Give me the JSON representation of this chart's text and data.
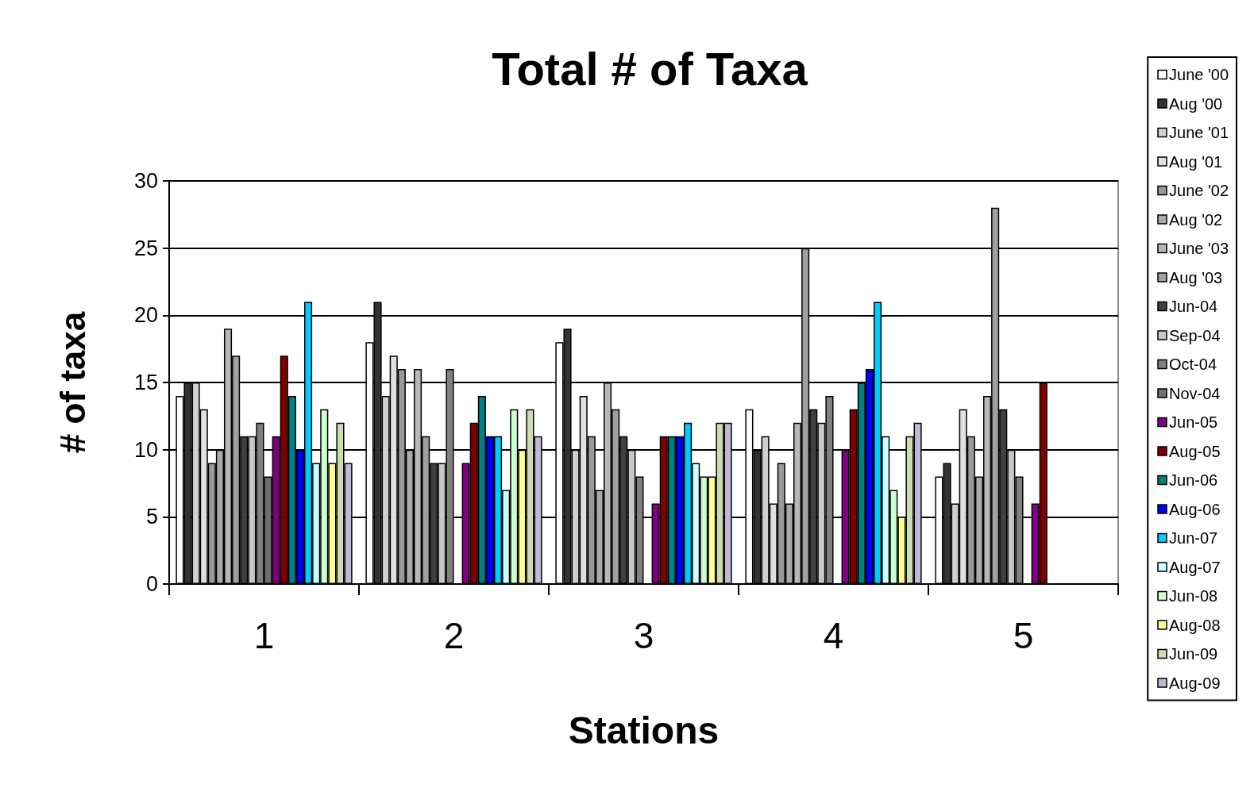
{
  "chart_data": {
    "type": "bar",
    "title": "Total # of Taxa",
    "xlabel": "Stations",
    "ylabel": "# of taxa",
    "categories": [
      "1",
      "2",
      "3",
      "4",
      "5"
    ],
    "ylim": [
      0,
      30
    ],
    "yticks": [
      0,
      5,
      10,
      15,
      20,
      25,
      30
    ],
    "grid": "y",
    "legend": "right",
    "series": [
      {
        "name": "June '00",
        "color": "#ffffff",
        "values": [
          14,
          18,
          18,
          13,
          8
        ]
      },
      {
        "name": "Aug '00",
        "color": "#333333",
        "values": [
          15,
          21,
          19,
          10,
          9
        ]
      },
      {
        "name": "June '01",
        "color": "#d0d0d0",
        "values": [
          15,
          14,
          10,
          11,
          6
        ]
      },
      {
        "name": "Aug '01",
        "color": "#e0e0e0",
        "values": [
          13,
          17,
          14,
          6,
          13
        ]
      },
      {
        "name": "June '02",
        "color": "#999999",
        "values": [
          9,
          16,
          11,
          9,
          11
        ]
      },
      {
        "name": "Aug '02",
        "color": "#aaaaaa",
        "values": [
          10,
          10,
          7,
          6,
          8
        ]
      },
      {
        "name": "June '03",
        "color": "#b8b8b8",
        "values": [
          19,
          16,
          15,
          12,
          14
        ]
      },
      {
        "name": "Aug '03",
        "color": "#a0a0a0",
        "values": [
          17,
          11,
          13,
          25,
          28
        ]
      },
      {
        "name": "Jun-04",
        "color": "#404040",
        "values": [
          11,
          9,
          11,
          13,
          13
        ]
      },
      {
        "name": "Sep-04",
        "color": "#c8c8c8",
        "values": [
          11,
          9,
          10,
          12,
          10
        ]
      },
      {
        "name": "Oct-04",
        "color": "#808080",
        "values": [
          12,
          16,
          8,
          14,
          8
        ]
      },
      {
        "name": "Nov-04",
        "color": "#707070",
        "values": [
          8,
          null,
          null,
          null,
          null
        ]
      },
      {
        "name": "Jun-05",
        "color": "#800080",
        "values": [
          11,
          9,
          6,
          10,
          6
        ]
      },
      {
        "name": "Aug-05",
        "color": "#800000",
        "values": [
          17,
          12,
          11,
          13,
          15
        ]
      },
      {
        "name": "Jun-06",
        "color": "#008080",
        "values": [
          14,
          14,
          11,
          15,
          null
        ]
      },
      {
        "name": "Aug-06",
        "color": "#0000ff",
        "values": [
          10,
          11,
          11,
          16,
          null
        ]
      },
      {
        "name": "Jun-07",
        "color": "#00ccff",
        "values": [
          21,
          11,
          12,
          21,
          null
        ]
      },
      {
        "name": "Aug-07",
        "color": "#ccffff",
        "values": [
          9,
          7,
          9,
          11,
          null
        ]
      },
      {
        "name": "Jun-08",
        "color": "#ccffcc",
        "values": [
          13,
          13,
          8,
          7,
          null
        ]
      },
      {
        "name": "Aug-08",
        "color": "#ffff99",
        "values": [
          9,
          10,
          8,
          5,
          null
        ]
      },
      {
        "name": "Jun-09",
        "color": "#cddcb4",
        "values": [
          12,
          13,
          12,
          11,
          null
        ]
      },
      {
        "name": "Aug-09",
        "color": "#c0b8d4",
        "values": [
          9,
          11,
          12,
          12,
          null
        ]
      }
    ]
  }
}
